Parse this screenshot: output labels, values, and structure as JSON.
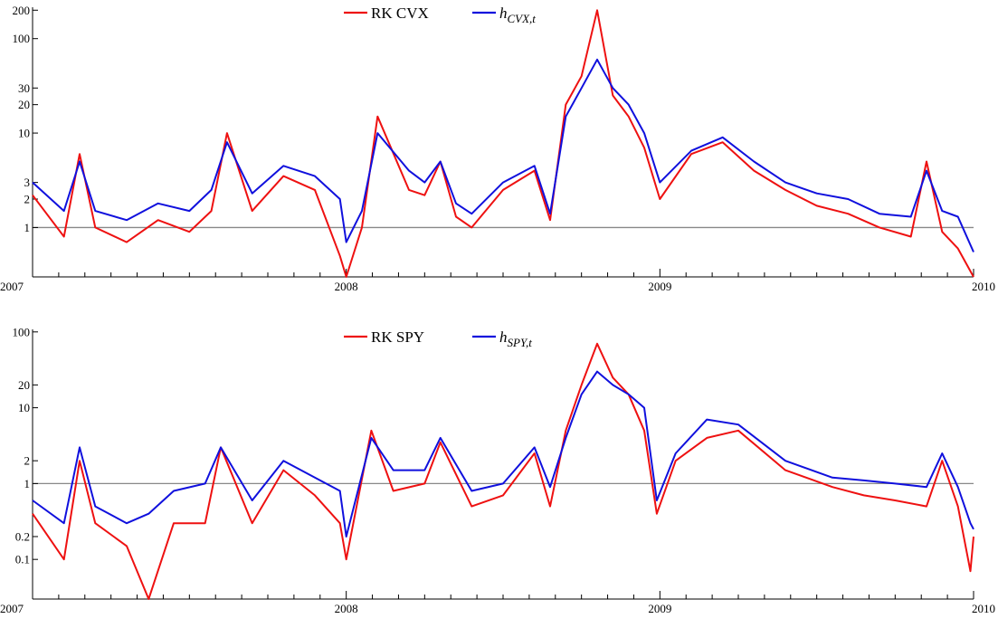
{
  "chart_data": [
    {
      "type": "line",
      "yscale": "log",
      "ylim": [
        0.3,
        215
      ],
      "xlim": [
        2007,
        2010
      ],
      "x_ticks": [
        "2007",
        "2008",
        "2009",
        "2010"
      ],
      "y_ticks": [
        "1",
        "2",
        "3",
        "10",
        "20",
        "30",
        "100",
        "200"
      ],
      "y_tick_values": [
        1,
        2,
        3,
        10,
        20,
        30,
        100,
        200
      ],
      "reference_line": 1,
      "legend_placement": "top-center",
      "series": [
        {
          "name": "RK CVX",
          "color": "#ee1111",
          "x": [
            2007.0,
            2007.1,
            2007.15,
            2007.2,
            2007.3,
            2007.4,
            2007.5,
            2007.57,
            2007.62,
            2007.7,
            2007.8,
            2007.9,
            2007.98,
            2008.0,
            2008.05,
            2008.1,
            2008.2,
            2008.25,
            2008.3,
            2008.35,
            2008.4,
            2008.5,
            2008.6,
            2008.65,
            2008.7,
            2008.75,
            2008.8,
            2008.85,
            2008.9,
            2008.95,
            2009.0,
            2009.1,
            2009.2,
            2009.3,
            2009.4,
            2009.5,
            2009.6,
            2009.7,
            2009.8,
            2009.85,
            2009.9,
            2009.95,
            2010.0
          ],
          "y": [
            2.2,
            0.8,
            6.0,
            1.0,
            0.7,
            1.2,
            0.9,
            1.5,
            10.0,
            1.5,
            3.5,
            2.5,
            0.5,
            0.3,
            1.0,
            15.0,
            2.5,
            2.2,
            5.0,
            1.3,
            1.0,
            2.5,
            4.0,
            1.2,
            20.0,
            40.0,
            200.0,
            25.0,
            15.0,
            7.0,
            2.0,
            6.0,
            8.0,
            4.0,
            2.5,
            1.7,
            1.4,
            1.0,
            0.8,
            5.0,
            0.9,
            0.6,
            0.3
          ]
        },
        {
          "name": "h_CVX,t",
          "color": "#1010dd",
          "x": [
            2007.0,
            2007.1,
            2007.15,
            2007.2,
            2007.3,
            2007.4,
            2007.5,
            2007.57,
            2007.62,
            2007.7,
            2007.8,
            2007.9,
            2007.98,
            2008.0,
            2008.05,
            2008.1,
            2008.2,
            2008.25,
            2008.3,
            2008.35,
            2008.4,
            2008.5,
            2008.6,
            2008.65,
            2008.7,
            2008.75,
            2008.8,
            2008.85,
            2008.9,
            2008.95,
            2009.0,
            2009.1,
            2009.2,
            2009.3,
            2009.4,
            2009.5,
            2009.6,
            2009.7,
            2009.8,
            2009.85,
            2009.9,
            2009.95,
            2010.0
          ],
          "y": [
            3.0,
            1.5,
            5.0,
            1.5,
            1.2,
            1.8,
            1.5,
            2.5,
            8.0,
            2.3,
            4.5,
            3.5,
            2.0,
            0.7,
            1.5,
            10.0,
            4.0,
            3.0,
            5.0,
            1.8,
            1.4,
            3.0,
            4.5,
            1.4,
            15.0,
            30.0,
            60.0,
            30.0,
            20.0,
            10.0,
            3.0,
            6.5,
            9.0,
            5.0,
            3.0,
            2.3,
            2.0,
            1.4,
            1.3,
            4.0,
            1.5,
            1.3,
            0.55
          ]
        }
      ]
    },
    {
      "type": "line",
      "yscale": "log",
      "ylim": [
        0.03,
        108
      ],
      "xlim": [
        2007,
        2010
      ],
      "x_ticks": [
        "2007",
        "2008",
        "2009",
        "2010"
      ],
      "y_ticks": [
        "0.1",
        "0.2",
        "1",
        "2",
        "10",
        "20",
        "100"
      ],
      "y_tick_values": [
        0.1,
        0.2,
        1,
        2,
        10,
        20,
        100
      ],
      "reference_line": 1,
      "legend_placement": "top-center",
      "series": [
        {
          "name": "RK SPY",
          "color": "#ee1111",
          "x": [
            2007.0,
            2007.1,
            2007.15,
            2007.2,
            2007.3,
            2007.37,
            2007.45,
            2007.55,
            2007.6,
            2007.7,
            2007.8,
            2007.9,
            2007.98,
            2008.0,
            2008.08,
            2008.15,
            2008.25,
            2008.3,
            2008.4,
            2008.5,
            2008.6,
            2008.65,
            2008.7,
            2008.75,
            2008.8,
            2008.85,
            2008.9,
            2008.95,
            2008.99,
            2009.05,
            2009.15,
            2009.25,
            2009.4,
            2009.55,
            2009.65,
            2009.75,
            2009.85,
            2009.9,
            2009.95,
            2009.99,
            2010.0
          ],
          "y": [
            0.4,
            0.1,
            2.0,
            0.3,
            0.15,
            0.03,
            0.3,
            0.3,
            3.0,
            0.3,
            1.5,
            0.7,
            0.3,
            0.1,
            5.0,
            0.8,
            1.0,
            3.5,
            0.5,
            0.7,
            2.5,
            0.5,
            5.0,
            20.0,
            70.0,
            25.0,
            15.0,
            5.0,
            0.4,
            2.0,
            4.0,
            5.0,
            1.5,
            0.9,
            0.7,
            0.6,
            0.5,
            2.0,
            0.5,
            0.07,
            0.2
          ]
        },
        {
          "name": "h_SPY,t",
          "color": "#1010dd",
          "x": [
            2007.0,
            2007.1,
            2007.15,
            2007.2,
            2007.3,
            2007.37,
            2007.45,
            2007.55,
            2007.6,
            2007.7,
            2007.8,
            2007.9,
            2007.98,
            2008.0,
            2008.08,
            2008.15,
            2008.25,
            2008.3,
            2008.4,
            2008.5,
            2008.6,
            2008.65,
            2008.7,
            2008.75,
            2008.8,
            2008.85,
            2008.9,
            2008.95,
            2008.99,
            2009.05,
            2009.15,
            2009.25,
            2009.4,
            2009.55,
            2009.65,
            2009.75,
            2009.85,
            2009.9,
            2009.95,
            2009.99,
            2010.0
          ],
          "y": [
            0.6,
            0.3,
            3.0,
            0.5,
            0.3,
            0.4,
            0.8,
            1.0,
            3.0,
            0.6,
            2.0,
            1.2,
            0.8,
            0.2,
            4.0,
            1.5,
            1.5,
            4.0,
            0.8,
            1.0,
            3.0,
            0.9,
            4.0,
            15.0,
            30.0,
            20.0,
            15.0,
            10.0,
            0.6,
            2.5,
            7.0,
            6.0,
            2.0,
            1.2,
            1.1,
            1.0,
            0.9,
            2.5,
            0.9,
            0.3,
            0.25
          ]
        }
      ]
    }
  ]
}
